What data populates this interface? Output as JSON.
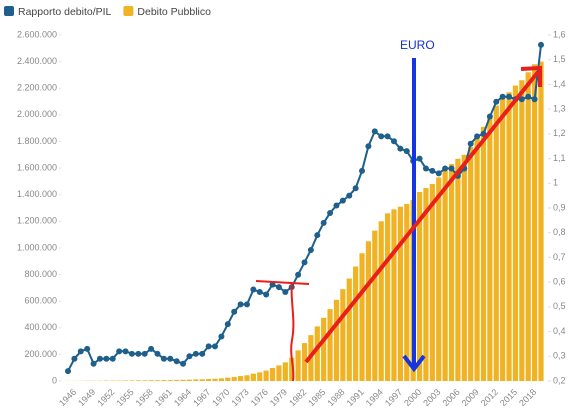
{
  "chart_data": {
    "type": "bar_line",
    "legend": "top-left",
    "categories": [
      "1946",
      null,
      null,
      "1949",
      null,
      null,
      "1952",
      null,
      null,
      "1955",
      null,
      null,
      "1958",
      null,
      null,
      "1961",
      null,
      null,
      "1964",
      null,
      null,
      "1967",
      null,
      null,
      "1970",
      null,
      null,
      "1973",
      null,
      null,
      "1976",
      null,
      null,
      "1979",
      null,
      null,
      "1982",
      null,
      null,
      "1985",
      null,
      null,
      "1988",
      null,
      null,
      "1991",
      null,
      null,
      "1994",
      null,
      null,
      "1997",
      null,
      null,
      "2000",
      null,
      null,
      "2003",
      null,
      null,
      "2006",
      null,
      null,
      "2009",
      null,
      null,
      "2012",
      null,
      null,
      "2015",
      null,
      null,
      "2018",
      null,
      null
    ],
    "series": [
      {
        "name": "Rapporto debito/PIL",
        "color": "#1f5f8b",
        "axis": "y2",
        "kind": "line",
        "values": [
          0.24,
          0.29,
          0.32,
          0.33,
          0.27,
          0.29,
          0.29,
          0.29,
          0.32,
          0.32,
          0.31,
          0.31,
          0.31,
          0.33,
          0.31,
          0.29,
          0.29,
          0.28,
          0.27,
          0.3,
          0.31,
          0.31,
          0.34,
          0.34,
          0.38,
          0.43,
          0.48,
          0.51,
          0.51,
          0.57,
          0.56,
          0.55,
          0.59,
          0.58,
          0.56,
          0.58,
          0.63,
          0.68,
          0.73,
          0.79,
          0.84,
          0.88,
          0.91,
          0.93,
          0.95,
          0.98,
          1.05,
          1.15,
          1.21,
          1.19,
          1.19,
          1.17,
          1.14,
          1.13,
          1.09,
          1.1,
          1.06,
          1.05,
          1.04,
          1.06,
          1.06,
          1.03,
          1.06,
          1.16,
          1.19,
          1.2,
          1.27,
          1.33,
          1.35,
          1.35,
          1.34,
          1.34,
          1.35,
          1.34,
          1.56
        ]
      },
      {
        "name": "Debito Pubblico",
        "color": "#f0b323",
        "axis": "y",
        "kind": "bar",
        "values": [
          1000,
          1000,
          1000,
          2000,
          2000,
          2000,
          3000,
          3000,
          3000,
          4000,
          4000,
          5000,
          5000,
          6000,
          6000,
          7000,
          7000,
          8000,
          9000,
          10000,
          12000,
          13000,
          15000,
          17000,
          20000,
          25000,
          30000,
          37000,
          43000,
          55000,
          65000,
          78000,
          98000,
          117000,
          140000,
          175000,
          230000,
          285000,
          345000,
          410000,
          475000,
          540000,
          610000,
          690000,
          770000,
          860000,
          960000,
          1050000,
          1130000,
          1200000,
          1260000,
          1290000,
          1310000,
          1330000,
          1360000,
          1420000,
          1450000,
          1480000,
          1530000,
          1580000,
          1630000,
          1670000,
          1700000,
          1760000,
          1850000,
          1910000,
          1990000,
          2070000,
          2140000,
          2170000,
          2220000,
          2260000,
          2320000,
          2380000,
          2400000
        ]
      }
    ],
    "ylim": [
      0,
      2600000
    ],
    "yticks": [
      0,
      {
        "value": 200000,
        "label": "200.000"
      },
      {
        "value": 400000,
        "label": "400.000"
      },
      {
        "value": 600000,
        "label": "600.000"
      },
      {
        "value": 800000,
        "label": "800.000"
      },
      {
        "value": 1000000,
        "label": "1.000.000"
      },
      {
        "value": 1200000,
        "label": "1.200.000"
      },
      {
        "value": 1400000,
        "label": "1.400.000"
      },
      {
        "value": 1600000,
        "label": "1.600.000"
      },
      {
        "value": 1800000,
        "label": "1.800.000"
      },
      {
        "value": 2000000,
        "label": "2.000.000"
      },
      {
        "value": 2200000,
        "label": "2.200.000"
      },
      {
        "value": 2400000,
        "label": "2.400.000"
      },
      {
        "value": 2600000,
        "label": "2.600.000"
      }
    ],
    "y2lim": [
      0.2,
      1.6
    ],
    "y2ticks": [
      {
        "value": 0.2,
        "label": "0,2"
      },
      {
        "value": 0.3,
        "label": "0,3"
      },
      {
        "value": 0.4,
        "label": "0,4"
      },
      {
        "value": 0.5,
        "label": "0,5"
      },
      {
        "value": 0.6,
        "label": "0,6"
      },
      {
        "value": 0.7,
        "label": "0,7"
      },
      {
        "value": 0.8,
        "label": "0,8"
      },
      {
        "value": 0.9,
        "label": "0,9"
      },
      1,
      {
        "value": 1.1,
        "label": "1,1"
      },
      {
        "value": 1.2,
        "label": "1,2"
      },
      {
        "value": 1.3,
        "label": "1,3"
      },
      {
        "value": 1.4,
        "label": "1,4"
      },
      {
        "value": 1.5,
        "label": "1,5"
      },
      {
        "value": 1.6,
        "label": "1,6"
      }
    ],
    "annotations": [
      "EURO"
    ]
  }
}
